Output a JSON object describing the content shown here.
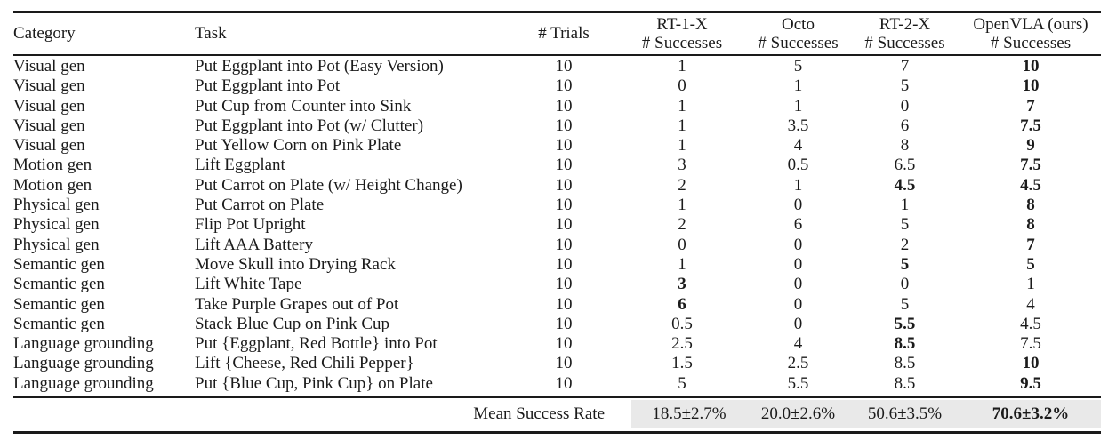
{
  "table": {
    "columns": [
      {
        "key": "category",
        "label": "Category"
      },
      {
        "key": "task",
        "label": "Task"
      },
      {
        "key": "trials",
        "label": "# Trials"
      },
      {
        "key": "rt1x",
        "label": "RT-1-X",
        "sublabel": "# Successes"
      },
      {
        "key": "octo",
        "label": "Octo",
        "sublabel": "# Successes"
      },
      {
        "key": "rt2x",
        "label": "RT-2-X",
        "sublabel": "# Successes"
      },
      {
        "key": "openvla",
        "label": "OpenVLA (ours)",
        "sublabel": "# Successes"
      }
    ],
    "rows": [
      {
        "category": "Visual gen",
        "task": "Put Eggplant into Pot (Easy Version)",
        "trials": "10",
        "rt1x": "1",
        "octo": "5",
        "rt2x": "7",
        "openvla": "10",
        "bold": [
          "openvla"
        ]
      },
      {
        "category": "Visual gen",
        "task": "Put Eggplant into Pot",
        "trials": "10",
        "rt1x": "0",
        "octo": "1",
        "rt2x": "5",
        "openvla": "10",
        "bold": [
          "openvla"
        ]
      },
      {
        "category": "Visual gen",
        "task": "Put Cup from Counter into Sink",
        "trials": "10",
        "rt1x": "1",
        "octo": "1",
        "rt2x": "0",
        "openvla": "7",
        "bold": [
          "openvla"
        ]
      },
      {
        "category": "Visual gen",
        "task": "Put Eggplant into Pot (w/ Clutter)",
        "trials": "10",
        "rt1x": "1",
        "octo": "3.5",
        "rt2x": "6",
        "openvla": "7.5",
        "bold": [
          "openvla"
        ]
      },
      {
        "category": "Visual gen",
        "task": "Put Yellow Corn on Pink Plate",
        "trials": "10",
        "rt1x": "1",
        "octo": "4",
        "rt2x": "8",
        "openvla": "9",
        "bold": [
          "openvla"
        ]
      },
      {
        "category": "Motion gen",
        "task": "Lift Eggplant",
        "trials": "10",
        "rt1x": "3",
        "octo": "0.5",
        "rt2x": "6.5",
        "openvla": "7.5",
        "bold": [
          "openvla"
        ]
      },
      {
        "category": "Motion gen",
        "task": "Put Carrot on Plate (w/ Height Change)",
        "trials": "10",
        "rt1x": "2",
        "octo": "1",
        "rt2x": "4.5",
        "openvla": "4.5",
        "bold": [
          "rt2x",
          "openvla"
        ]
      },
      {
        "category": "Physical gen",
        "task": "Put Carrot on Plate",
        "trials": "10",
        "rt1x": "1",
        "octo": "0",
        "rt2x": "1",
        "openvla": "8",
        "bold": [
          "openvla"
        ]
      },
      {
        "category": "Physical gen",
        "task": "Flip Pot Upright",
        "trials": "10",
        "rt1x": "2",
        "octo": "6",
        "rt2x": "5",
        "openvla": "8",
        "bold": [
          "openvla"
        ]
      },
      {
        "category": "Physical gen",
        "task": "Lift AAA Battery",
        "trials": "10",
        "rt1x": "0",
        "octo": "0",
        "rt2x": "2",
        "openvla": "7",
        "bold": [
          "openvla"
        ]
      },
      {
        "category": "Semantic gen",
        "task": "Move Skull into Drying Rack",
        "trials": "10",
        "rt1x": "1",
        "octo": "0",
        "rt2x": "5",
        "openvla": "5",
        "bold": [
          "rt2x",
          "openvla"
        ]
      },
      {
        "category": "Semantic gen",
        "task": "Lift White Tape",
        "trials": "10",
        "rt1x": "3",
        "octo": "0",
        "rt2x": "0",
        "openvla": "1",
        "bold": [
          "rt1x"
        ]
      },
      {
        "category": "Semantic gen",
        "task": "Take Purple Grapes out of Pot",
        "trials": "10",
        "rt1x": "6",
        "octo": "0",
        "rt2x": "5",
        "openvla": "4",
        "bold": [
          "rt1x"
        ]
      },
      {
        "category": "Semantic gen",
        "task": "Stack Blue Cup on Pink Cup",
        "trials": "10",
        "rt1x": "0.5",
        "octo": "0",
        "rt2x": "5.5",
        "openvla": "4.5",
        "bold": [
          "rt2x"
        ]
      },
      {
        "category": "Language grounding",
        "task": "Put {Eggplant, Red Bottle} into Pot",
        "trials": "10",
        "rt1x": "2.5",
        "octo": "4",
        "rt2x": "8.5",
        "openvla": "7.5",
        "bold": [
          "rt2x"
        ]
      },
      {
        "category": "Language grounding",
        "task": "Lift {Cheese, Red Chili Pepper}",
        "trials": "10",
        "rt1x": "1.5",
        "octo": "2.5",
        "rt2x": "8.5",
        "openvla": "10",
        "bold": [
          "openvla"
        ]
      },
      {
        "category": "Language grounding",
        "task": "Put {Blue Cup, Pink Cup} on Plate",
        "trials": "10",
        "rt1x": "5",
        "octo": "5.5",
        "rt2x": "8.5",
        "openvla": "9.5",
        "bold": [
          "openvla"
        ]
      }
    ],
    "footer": {
      "label": "Mean Success Rate",
      "rt1x": "18.5±2.7%",
      "octo": "20.0±2.6%",
      "rt2x": "50.6±3.5%",
      "openvla": "70.6±3.2%",
      "bold": [
        "openvla"
      ],
      "highlight_color": "#e9e9e9"
    }
  }
}
